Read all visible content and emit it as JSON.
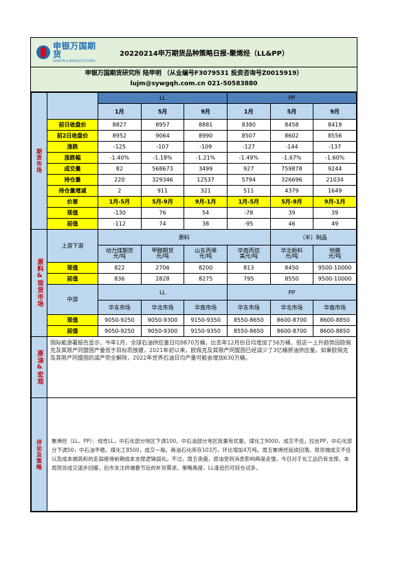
{
  "header": {
    "logo_cn": "申银万国期货",
    "logo_en": "SHENYIN & WANGUO FUTURES",
    "title": "20220214申万期货品种策略日报-聚烯烃（LL&PP）",
    "institute_line": "申银万国期货研究所 陆甲明 （从业编号F3079531 投资咨询号Z0015919）",
    "contact_line": "lujm@sywgqh.com.cn 021-50583880"
  },
  "futures": {
    "side_label": "期货市场",
    "groups": [
      "LL",
      "PP"
    ],
    "months": [
      "1月",
      "5月",
      "9月",
      "1月",
      "5月",
      "9月"
    ],
    "rows": [
      {
        "label": "前日收盘价",
        "values": [
          "8827",
          "8957",
          "8881",
          "8380",
          "8458",
          "8419"
        ]
      },
      {
        "label": "前2日收盘价",
        "values": [
          "8952",
          "9064",
          "8990",
          "8507",
          "8602",
          "8556"
        ]
      },
      {
        "label": "涨跌",
        "values": [
          "-125",
          "-107",
          "-109",
          "-127",
          "-144",
          "-137"
        ]
      },
      {
        "label": "涨跌幅",
        "values": [
          "-1.40%",
          "-1.18%",
          "-1.21%",
          "-1.49%",
          "-1.67%",
          "-1.60%"
        ]
      },
      {
        "label": "成交量",
        "values": [
          "82",
          "568673",
          "3499",
          "927",
          "759878",
          "9244"
        ]
      },
      {
        "label": "持仓量",
        "values": [
          "220",
          "329346",
          "12537",
          "5794",
          "326696",
          "21034"
        ]
      },
      {
        "label": "持仓量增减",
        "values": [
          "2",
          "911",
          "321",
          "511",
          "4379",
          "1649"
        ]
      }
    ],
    "spread_header": {
      "label": "价差",
      "values": [
        "1月-5月",
        "5月-9月",
        "9月-1月",
        "1月-5月",
        "5月-9月",
        "9月-1月"
      ]
    },
    "spread_rows": [
      {
        "label": "现值",
        "values": [
          "-130",
          "76",
          "54",
          "-78",
          "39",
          "39"
        ]
      },
      {
        "label": "前值",
        "values": [
          "-112",
          "74",
          "38",
          "-95",
          "46",
          "49"
        ]
      }
    ]
  },
  "spot": {
    "side_label": "原料&现货市场",
    "upstream_label": "上游下游",
    "raw_group": "原料",
    "product_group": "（半）制品",
    "items": [
      {
        "name": "动力煤期货",
        "unit": "元/吨"
      },
      {
        "name": "甲醇期货",
        "unit": "元/吨"
      },
      {
        "name": "山东丙烯",
        "unit": "元/吨"
      },
      {
        "name": "华南丙烷",
        "unit": "美元/吨"
      },
      {
        "name": "华北粉料",
        "unit": "元/吨"
      },
      {
        "name": "地膜",
        "unit": "元/吨"
      }
    ],
    "rows": [
      {
        "label": "现值",
        "values": [
          "822",
          "2706",
          "8200",
          "813",
          "8450",
          "9500-10000"
        ]
      },
      {
        "label": "前值",
        "values": [
          "836",
          "2828",
          "8275",
          "795",
          "8550",
          "9500-10000"
        ]
      }
    ],
    "downstream_label": "中游",
    "ll_group": "LL",
    "pp_group": "PP",
    "markets": [
      "华东市场",
      "华北市场",
      "华南市场",
      "华东市场",
      "华北市场",
      "华南市场"
    ],
    "market_rows": [
      {
        "label": "现值",
        "values": [
          "9050-9250",
          "9050-9300",
          "9150-9350",
          "8550-8650",
          "8600-8700",
          "8600-8850"
        ]
      },
      {
        "label": "前值",
        "values": [
          "9050-9250",
          "9050-9300",
          "9150-9350",
          "8550-8650",
          "8600-8700",
          "8600-8850"
        ]
      }
    ]
  },
  "macro": {
    "side_label": "原油&宏观",
    "text": "国际能源署报告显示，今年1月，全球石油供应量日均9870万桶，比去年12月份日均增加了56万桶，但这一上升趋势因欧佩克及其限产同盟国产量低于目标而放缓，2021年初以来，欧佩克及其限产同盟国已经减少了3亿桶原油供应量。如果欧佩克及其限产同盟国的减产完全解除，2022年世界石油日均产量可能会增加630万桶。"
  },
  "comment": {
    "side_label": "评论及策略",
    "text": "聚烯烃（LL、PP）：线性LL，中石化部分地区下调100，中石油部分地区批量有优惠。煤化工9000，成交不佳。拉丝PP，中石化部分下调50，中石油平稳。煤化工8500，成交一般。两油石化库存103万，环比增加4万吨。周五聚烯烃延续回落。现货端成交不佳以及成本端高和的走弱使得前期成本支撑逻辑弱化。不过，周五夜盘，原油受到消息影响再度走强，今日对于化工品仍有支撑。本周现货成交逐步回暖，后市关注终端春节后的补货需求。策略角度，LL逢低仍可轻仓试多。"
  }
}
